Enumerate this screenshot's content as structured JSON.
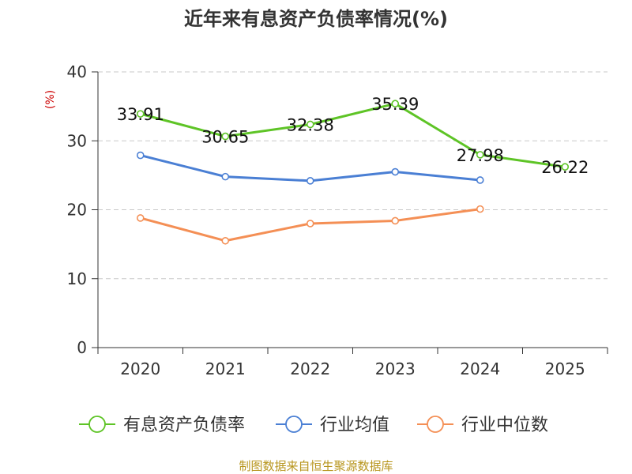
{
  "chart_data": {
    "type": "line",
    "title": "近年来有息资产负债率情况(%)",
    "ylabel": "(%)",
    "xlabel": "",
    "categories": [
      "2020",
      "2021",
      "2022",
      "2023",
      "2024",
      "2025"
    ],
    "ylim": [
      0,
      40
    ],
    "yticks": [
      0,
      10,
      20,
      30,
      40
    ],
    "grid": true,
    "legend_position": "bottom",
    "series": [
      {
        "name": "有息资产负债率",
        "color": "#5ec426",
        "values": [
          33.91,
          30.65,
          32.38,
          35.39,
          27.98,
          26.22
        ],
        "labels": [
          "33.91",
          "30.65",
          "32.38",
          "35.39",
          "27.98",
          "26.22"
        ]
      },
      {
        "name": "行业均值",
        "color": "#4a7fd4",
        "values": [
          27.9,
          24.8,
          24.2,
          25.5,
          24.3,
          null
        ]
      },
      {
        "name": "行业中位数",
        "color": "#f48f55",
        "values": [
          18.8,
          15.5,
          18.0,
          18.4,
          20.1,
          null
        ]
      }
    ]
  },
  "source": "制图数据来自恒生聚源数据库",
  "colors": {
    "axis": "#333333",
    "grid": "#c8c8c8",
    "ylabel": "#cc0000"
  }
}
